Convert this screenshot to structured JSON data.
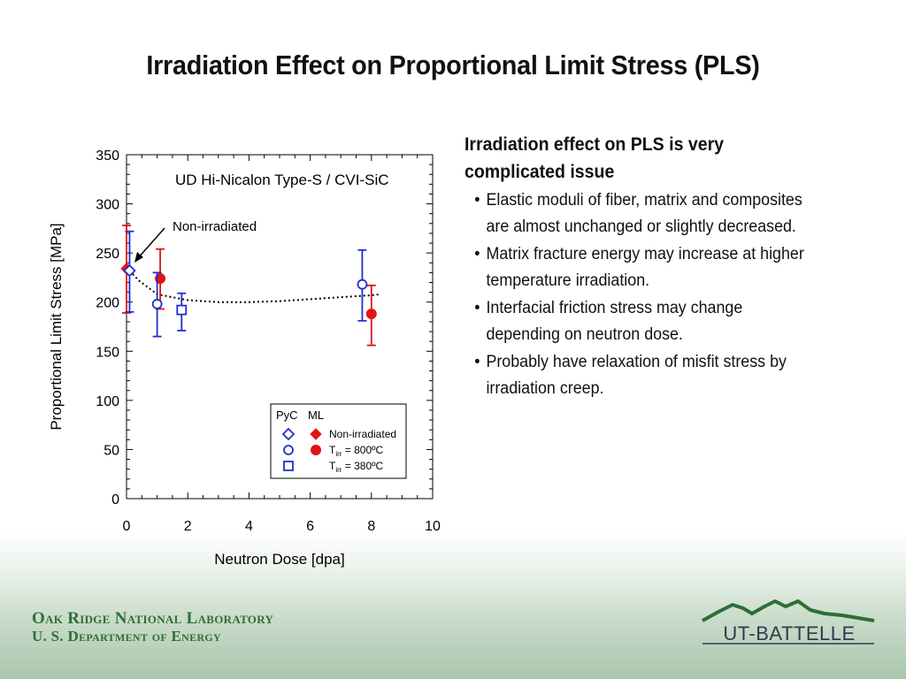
{
  "slide": {
    "title": "Irradiation Effect on Proportional Limit Stress (PLS)"
  },
  "bullets": {
    "heading_line1": "Irradiation effect on PLS is very",
    "heading_line2": "complicated issue",
    "items": [
      {
        "line1": "Elastic moduli of fiber, matrix and composites",
        "line2": "are almost unchanged or slightly decreased."
      },
      {
        "line1": "Matrix fracture energy may increase at higher",
        "line2": "temperature irradiation."
      },
      {
        "line1": "Interfacial friction stress may change",
        "line2": "depending on neutron dose."
      },
      {
        "line1": "Probably have relaxation of misfit stress by",
        "line2": "irradiation creep."
      }
    ]
  },
  "footer": {
    "org_line1": "Oak Ridge National Laboratory",
    "org_line2": "U. S. Department of Energy",
    "logo_text": "UT-BATTELLE"
  },
  "colors": {
    "pyc": "#1f2fd0",
    "ml": "#e11414",
    "footer_green": "#2f6e36"
  },
  "chart_data": {
    "type": "scatter",
    "title": "UD Hi-Nicalon Type-S / CVI-SiC",
    "xlabel": "Neutron Dose [dpa]",
    "ylabel": "Proportional Limit Stress [MPa]",
    "xlim": [
      0,
      10
    ],
    "ylim": [
      0,
      350
    ],
    "xticks": [
      0,
      2,
      4,
      6,
      8,
      10
    ],
    "yticks": [
      0,
      50,
      100,
      150,
      200,
      250,
      300,
      350
    ],
    "grid": false,
    "annotation": "Non-irradiated",
    "legend": {
      "placement": "bottom-right",
      "header_pyc": "PyC",
      "header_ml": "ML",
      "entries": [
        {
          "label": "Non-irradiated",
          "pyc_marker": "diamond-open",
          "ml_marker": "diamond-filled"
        },
        {
          "label_main": "T",
          "label_sub": "irr",
          "label_rest": " = 800ºC",
          "pyc_marker": "circle-open",
          "ml_marker": "circle-filled"
        },
        {
          "label_main": "T",
          "label_sub": "irr",
          "label_rest": " = 380ºC",
          "pyc_marker": "square-open",
          "ml_marker": ""
        }
      ]
    },
    "series": [
      {
        "interphase": "PyC",
        "condition": "Non-irradiated",
        "marker": "diamond-open",
        "color": "#1f2fd0",
        "points": [
          {
            "x": 0.1,
            "y": 232,
            "ylow": 190,
            "yhigh": 272
          }
        ]
      },
      {
        "interphase": "ML",
        "condition": "Non-irradiated",
        "marker": "diamond-filled",
        "color": "#e11414",
        "points": [
          {
            "x": 0.0,
            "y": 234,
            "ylow": 189,
            "yhigh": 278
          }
        ]
      },
      {
        "interphase": "PyC",
        "condition": "800C",
        "marker": "circle-open",
        "color": "#1f2fd0",
        "points": [
          {
            "x": 1.0,
            "y": 198,
            "ylow": 165,
            "yhigh": 230
          },
          {
            "x": 7.7,
            "y": 218,
            "ylow": 181,
            "yhigh": 253
          }
        ]
      },
      {
        "interphase": "ML",
        "condition": "800C",
        "marker": "circle-filled",
        "color": "#e11414",
        "points": [
          {
            "x": 1.1,
            "y": 224,
            "ylow": 193,
            "yhigh": 254
          },
          {
            "x": 8.0,
            "y": 188,
            "ylow": 156,
            "yhigh": 217
          }
        ]
      },
      {
        "interphase": "PyC",
        "condition": "380C",
        "marker": "square-open",
        "color": "#1f2fd0",
        "points": [
          {
            "x": 1.8,
            "y": 192,
            "ylow": 171,
            "yhigh": 209
          }
        ]
      }
    ],
    "trend_line": {
      "style": "dotted",
      "points": [
        [
          0.0,
          235
        ],
        [
          0.4,
          222
        ],
        [
          1.0,
          208
        ],
        [
          2.0,
          202
        ],
        [
          3.0,
          200
        ],
        [
          4.0,
          200
        ],
        [
          5.0,
          201
        ],
        [
          6.0,
          203
        ],
        [
          7.0,
          205
        ],
        [
          8.0,
          207
        ],
        [
          8.3,
          208
        ]
      ]
    }
  }
}
